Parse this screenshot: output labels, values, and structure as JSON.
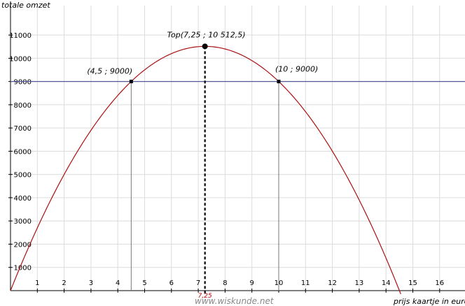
{
  "chart_data": {
    "type": "line",
    "ylabel": "totale omzet",
    "xlabel": "prijs kaartje in euro",
    "xlim": [
      0,
      17
    ],
    "ylim": [
      0,
      12000
    ],
    "x_ticks": [
      1,
      2,
      3,
      4,
      5,
      6,
      7,
      8,
      9,
      10,
      11,
      12,
      13,
      14,
      15,
      16
    ],
    "y_ticks": [
      1000,
      2000,
      3000,
      4000,
      5000,
      6000,
      7000,
      8000,
      9000,
      10000,
      11000
    ],
    "grid": true,
    "curve": {
      "formula": "R(p) = -200*p^2 + 2900*p",
      "x": [
        0,
        1,
        2,
        3,
        4,
        4.5,
        5,
        6,
        7,
        7.25,
        8,
        9,
        10,
        11,
        12,
        13,
        14,
        14.5
      ],
      "y": [
        0,
        2700,
        5000,
        6900,
        8400,
        9000,
        9500,
        10200,
        10500,
        10512.5,
        10400,
        9900,
        9000,
        7700,
        6000,
        3900,
        1400,
        0
      ],
      "color": "#aa1111"
    },
    "hline": {
      "y": 9000,
      "color": "#555a99"
    },
    "points": [
      {
        "x": 4.5,
        "y": 9000,
        "label": "(4,5 ; 9000)"
      },
      {
        "x": 7.25,
        "y": 10512.5,
        "label": "Top(7,25 ; 10 512,5)"
      },
      {
        "x": 10,
        "y": 9000,
        "label": "(10 ; 9000)"
      }
    ],
    "vertex_x_label": "7,25",
    "vertex_x_label_color": "#c00000"
  },
  "watermark": "www.wiskunde.net"
}
